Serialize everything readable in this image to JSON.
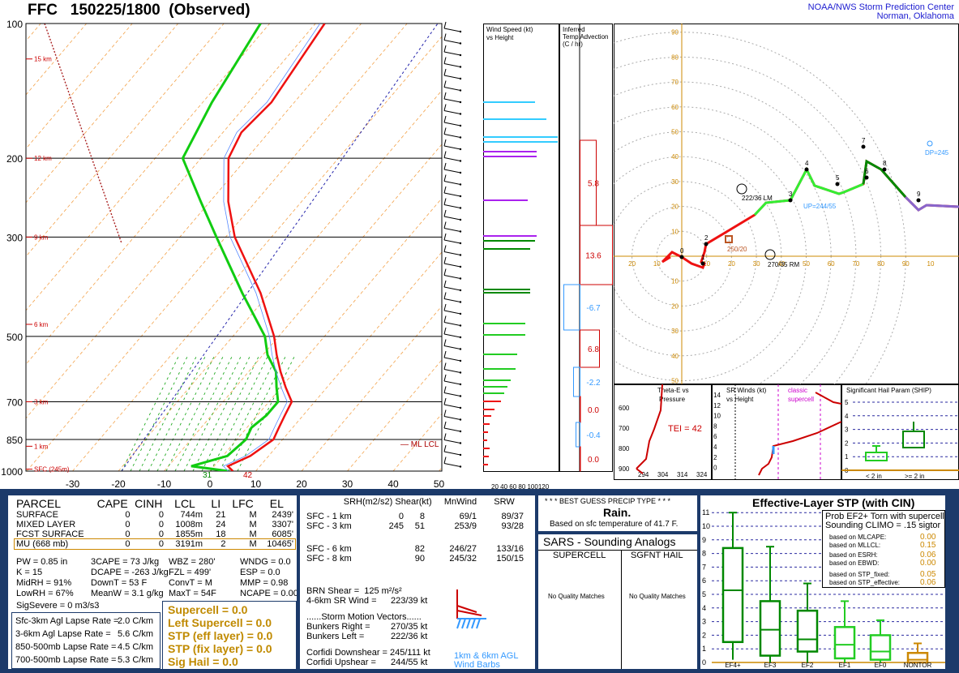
{
  "title": "FFC   150225/1800  (Observed)",
  "org": {
    "line1": "NOAA/NWS Storm Prediction Center",
    "line2": "Norman, Oklahoma"
  },
  "skewt": {
    "pressure_labels": [
      "100",
      "200",
      "300",
      "500",
      "700",
      "850",
      "1000"
    ],
    "temp_ticks": [
      "-30",
      "-20",
      "-10",
      "0",
      "10",
      "20",
      "30",
      "40",
      "50"
    ],
    "height_labels": [
      "15 km",
      "12 km",
      "9 km",
      "6 km",
      "3 km",
      "1 km",
      "SFC (245m)"
    ],
    "lcl_label": "ML LCL",
    "sfc_temp_label": "31",
    "sfc_dew_label": "42"
  },
  "wind_speed_panel": {
    "title1": "Wind Speed (kt)",
    "title2": "vs Height",
    "ticks": "20 40 60 80 100120"
  },
  "temp_adv_panel": {
    "title1": "Inferred",
    "title2": "Temp Advection",
    "title3": "(C / hr)",
    "values": [
      "5.8",
      "13.6",
      "-6.7",
      "6.8",
      "-2.2",
      "0.0",
      "-0.4",
      "0.0"
    ]
  },
  "hodograph": {
    "ring_labels": [
      "10",
      "20",
      "30",
      "40",
      "50",
      "60",
      "70",
      "80",
      "90"
    ],
    "h_labels": [
      "20",
      "10",
      "10",
      "20",
      "30",
      "40",
      "50",
      "60",
      "70",
      "80",
      "90",
      "10"
    ],
    "v_labels": [
      "90",
      "80",
      "70",
      "60",
      "50",
      "40",
      "30",
      "20",
      "10",
      "10",
      "20",
      "30",
      "40",
      "50"
    ],
    "lm": "222/36 LM",
    "rm": "270/35 RM",
    "mean": "250/20",
    "up": "UP=244/55",
    "dp": "DP=245",
    "points": [
      "0",
      "1",
      "2",
      "3",
      "4",
      "5",
      "6",
      "7",
      "8",
      "9"
    ]
  },
  "theta_panel": {
    "title1": "Theta-E vs",
    "title2": "Pressure",
    "tei": "TEI = 42",
    "y": [
      "600",
      "700",
      "800",
      "900"
    ],
    "x": [
      "294",
      "304",
      "314",
      "324"
    ]
  },
  "srwind_panel": {
    "title1": "SR Winds (kt)",
    "title2": "vs Height",
    "classic": "classic",
    "supercell": "supercell",
    "y": [
      "14",
      "12",
      "10",
      "8",
      "6",
      "4",
      "2",
      "0"
    ]
  },
  "ship_panel": {
    "title": "Significant Hail Param (SHIP)",
    "x1": "< 2 in",
    "x2": ">= 2 in",
    "y": [
      "5",
      "4",
      "3",
      "2",
      "1",
      "0"
    ]
  },
  "parcel": {
    "headers": [
      "PARCEL",
      "CAPE",
      "CINH",
      "LCL",
      "LI",
      "LFC",
      "EL"
    ],
    "rows": [
      [
        "SURFACE",
        "0",
        "0",
        "744m",
        "21",
        "M",
        "2439'"
      ],
      [
        "MIXED LAYER",
        "0",
        "0",
        "1008m",
        "24",
        "M",
        "3307'"
      ],
      [
        "FCST SURFACE",
        "0",
        "0",
        "1855m",
        "18",
        "M",
        "6085'"
      ],
      [
        "MU   (668 mb)",
        "0",
        "0",
        "3191m",
        "2",
        "M",
        "10465'"
      ]
    ],
    "indices": [
      [
        "PW = 0.85 in",
        "3CAPE = 73 J/kg",
        "WBZ = 280'",
        "WNDG = 0.0"
      ],
      [
        "K = 15",
        "DCAPE = -263 J/kg",
        "FZL = 499'",
        "ESP = 0.0"
      ],
      [
        "MidRH = 91%",
        "DownT = 53 F",
        "ConvT = M",
        "MMP = 0.98"
      ],
      [
        "LowRH = 67%",
        "MeanW = 3.1 g/kg",
        "MaxT = 54F",
        "NCAPE = 0.00"
      ]
    ],
    "sigsevere": "SigSevere = 0 m3/s3",
    "lapse": [
      [
        "Sfc-3km Agl Lapse Rate =",
        "2.0 C/km"
      ],
      [
        "3-6km Agl Lapse Rate =",
        "5.6 C/km"
      ],
      [
        "850-500mb Lapse Rate =",
        "4.5 C/km"
      ],
      [
        "700-500mb Lapse Rate =",
        "5.3 C/km"
      ]
    ],
    "composites": [
      "Supercell = 0.0",
      "Left Supercell = 0.0",
      "STP (eff layer) = 0.0",
      "STP (fix layer) = 0.0",
      "Sig Hail = 0.0"
    ]
  },
  "kinematics": {
    "headers": [
      "SRH(m2/s2)",
      "Shear(kt)",
      "MnWind",
      "SRW"
    ],
    "rows": [
      [
        "SFC - 1 km",
        "0",
        "8",
        "69/1",
        "89/37"
      ],
      [
        "SFC - 3 km",
        "245",
        "51",
        "253/9",
        "93/28"
      ],
      [
        "SFC - 6 km",
        "",
        "82",
        "246/27",
        "133/16"
      ],
      [
        "SFC - 8 km",
        "",
        "90",
        "245/32",
        "150/15"
      ]
    ],
    "brn": "BRN Shear =  125 m²/s²",
    "sr46": "4-6km SR Wind =",
    "sr46v": "223/39 kt",
    "smv": "......Storm Motion Vectors......",
    "br": "Bunkers Right =",
    "brv": "270/35 kt",
    "bl": "Bunkers Left =",
    "blv": "222/36 kt",
    "cd": "Corfidi Downshear = 245/111 kt",
    "cu": "Corfidi Upshear =",
    "cuv": "244/55 kt",
    "barbs1": "1km & 6km AGL",
    "barbs2": "Wind Barbs"
  },
  "precip": {
    "title": "* * * BEST GUESS PRECIP TYPE * * *",
    "value": "Rain.",
    "note": "Based on sfc temperature of 41.7 F."
  },
  "sars": {
    "title": "SARS - Sounding Analogs",
    "col1": "SUPERCELL",
    "col2": "SGFNT HAIL",
    "nm1": "No Quality Matches",
    "nm2": "No Quality Matches"
  },
  "stp": {
    "title": "Effective-Layer STP (with CIN)",
    "box_title1": "Prob EF2+ Torn with supercell",
    "box_title2": "Sounding CLIMO = .15 sigtor",
    "rows": [
      [
        "based on MLCAPE:",
        "0.00"
      ],
      [
        "based on MLLCL:",
        "0.15"
      ],
      [
        "based on ESRH:",
        "0.06"
      ],
      [
        "based on EBWD:",
        "0.00"
      ],
      [
        "based on STP_fixed:",
        "0.05"
      ],
      [
        "based on STP_effective:",
        "0.06"
      ]
    ],
    "categories": [
      "EF4+",
      "EF3",
      "EF2",
      "EF1",
      "EF0",
      "NONTOR"
    ],
    "y": [
      "11",
      "10",
      "9",
      "8",
      "7",
      "6",
      "5",
      "4",
      "3",
      "2",
      "1",
      "0"
    ]
  },
  "chart_data": {
    "type": "line",
    "title": "FFC 150225/1800 (Observed)",
    "xlabel": "",
    "ylabel": "",
    "temperature_C": [
      [
        1000,
        5
      ],
      [
        975,
        3
      ],
      [
        925,
        6
      ],
      [
        850,
        8
      ],
      [
        800,
        7
      ],
      [
        750,
        6
      ],
      [
        700,
        5
      ],
      [
        650,
        1
      ],
      [
        600,
        -3
      ],
      [
        550,
        -7
      ],
      [
        500,
        -11
      ],
      [
        400,
        -22
      ],
      [
        300,
        -38
      ],
      [
        250,
        -46
      ],
      [
        200,
        -54
      ],
      [
        175,
        -56
      ],
      [
        150,
        -55
      ],
      [
        100,
        -58
      ]
    ],
    "dewpoint_C": [
      [
        1000,
        4
      ],
      [
        975,
        -5
      ],
      [
        925,
        1
      ],
      [
        850,
        2
      ],
      [
        800,
        1
      ],
      [
        750,
        2
      ],
      [
        700,
        2
      ],
      [
        650,
        -1
      ],
      [
        600,
        -4
      ],
      [
        550,
        -9
      ],
      [
        500,
        -13
      ],
      [
        400,
        -26
      ],
      [
        300,
        -42
      ],
      [
        250,
        -52
      ],
      [
        200,
        -64
      ],
      [
        150,
        -68
      ],
      [
        100,
        -72
      ]
    ],
    "precip_type": "Rain."
  }
}
